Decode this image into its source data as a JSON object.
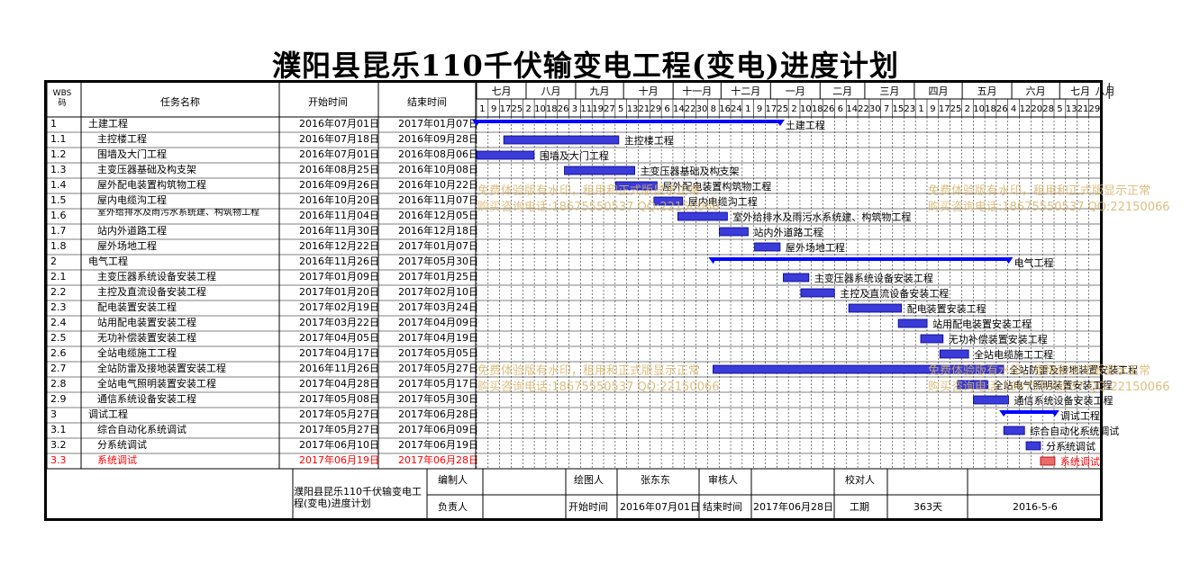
{
  "title": "濮阳县昆乐110千伏输变电工程(变电)进度计划",
  "columns": {
    "wbs": "WBS码",
    "name": "任务名称",
    "start": "开始时间",
    "end": "结束时间"
  },
  "months": [
    "七月",
    "八月",
    "九月",
    "十月",
    "十一月",
    "十二月",
    "一月",
    "二月",
    "三月",
    "四月",
    "五月",
    "六月",
    "七月",
    "八月"
  ],
  "days": [
    "1",
    "9",
    "17",
    "25",
    "2",
    "10",
    "18",
    "26",
    "3",
    "11",
    "19",
    "27",
    "5",
    "13",
    "21",
    "29",
    "6",
    "14",
    "22",
    "30",
    "8",
    "16",
    "24",
    "1",
    "9",
    "17",
    "25",
    "2",
    "10",
    "18",
    "26",
    "6",
    "14",
    "22",
    "30",
    "7",
    "15",
    "23",
    "1",
    "9",
    "17",
    "25",
    "2",
    "10",
    "18",
    "26",
    "4",
    "12",
    "20",
    "28",
    "5",
    "13",
    "21",
    "29"
  ],
  "tasks": [
    {
      "wbs": "1",
      "name": "土建工程",
      "start": "2016年07月01日",
      "end": "2017年01月07日",
      "level": 0,
      "type": "summary",
      "s": 0,
      "e": 190
    },
    {
      "wbs": "1.1",
      "name": "主控楼工程",
      "start": "2016年07月18日",
      "end": "2016年09月28日",
      "level": 1,
      "type": "task",
      "s": 17,
      "e": 89
    },
    {
      "wbs": "1.2",
      "name": "围墙及大门工程",
      "start": "2016年07月01日",
      "end": "2016年08月06日",
      "level": 1,
      "type": "task",
      "s": 0,
      "e": 36
    },
    {
      "wbs": "1.3",
      "name": "主变压器基础及构支架",
      "start": "2016年08月25日",
      "end": "2016年10月08日",
      "level": 1,
      "type": "task",
      "s": 55,
      "e": 99
    },
    {
      "wbs": "1.4",
      "name": "屋外配电装置构筑物工程",
      "start": "2016年09月26日",
      "end": "2016年10月22日",
      "level": 1,
      "type": "task",
      "s": 87,
      "e": 113
    },
    {
      "wbs": "1.5",
      "name": "屋内电缆沟工程",
      "start": "2016年10月20日",
      "end": "2016年11月07日",
      "level": 1,
      "type": "task",
      "s": 111,
      "e": 129
    },
    {
      "wbs": "1.6",
      "name": "室外给排水及雨污水系统建、构筑物工程",
      "start": "2016年11月04日",
      "end": "2016年12月05日",
      "level": 1,
      "type": "task",
      "s": 126,
      "e": 157
    },
    {
      "wbs": "1.7",
      "name": "站内外道路工程",
      "start": "2016年11月30日",
      "end": "2016年12月18日",
      "level": 1,
      "type": "task",
      "s": 152,
      "e": 170
    },
    {
      "wbs": "1.8",
      "name": "屋外场地工程",
      "start": "2016年12月22日",
      "end": "2017年01月07日",
      "level": 1,
      "type": "task",
      "s": 174,
      "e": 190
    },
    {
      "wbs": "2",
      "name": "电气工程",
      "start": "2016年11月26日",
      "end": "2017年05月30日",
      "level": 0,
      "type": "summary",
      "s": 148,
      "e": 333
    },
    {
      "wbs": "2.1",
      "name": "主变压器系统设备安装工程",
      "start": "2017年01月09日",
      "end": "2017年01月25日",
      "level": 1,
      "type": "task",
      "s": 192,
      "e": 208
    },
    {
      "wbs": "2.2",
      "name": "主控及直流设备安装工程",
      "start": "2017年01月20日",
      "end": "2017年02月10日",
      "level": 1,
      "type": "task",
      "s": 203,
      "e": 224
    },
    {
      "wbs": "2.3",
      "name": "配电装置安装工程",
      "start": "2017年02月19日",
      "end": "2017年03月24日",
      "level": 1,
      "type": "task",
      "s": 233,
      "e": 266
    },
    {
      "wbs": "2.4",
      "name": "站用配电装置安装工程",
      "start": "2017年03月22日",
      "end": "2017年04月09日",
      "level": 1,
      "type": "task",
      "s": 264,
      "e": 282
    },
    {
      "wbs": "2.5",
      "name": "无功补偿装置安装工程",
      "start": "2017年04月05日",
      "end": "2017年04月19日",
      "level": 1,
      "type": "task",
      "s": 278,
      "e": 292
    },
    {
      "wbs": "2.6",
      "name": "全站电缆施工工程",
      "start": "2017年04月17日",
      "end": "2017年05月05日",
      "level": 1,
      "type": "task",
      "s": 290,
      "e": 308
    },
    {
      "wbs": "2.7",
      "name": "全站防雷及接地装置安装工程",
      "start": "2016年11月26日",
      "end": "2017年05月27日",
      "level": 1,
      "type": "task",
      "s": 148,
      "e": 330
    },
    {
      "wbs": "2.8",
      "name": "全站电气照明装置安装工程",
      "start": "2017年04月28日",
      "end": "2017年05月17日",
      "level": 1,
      "type": "task",
      "s": 301,
      "e": 320
    },
    {
      "wbs": "2.9",
      "name": "通信系统设备安装工程",
      "start": "2017年05月08日",
      "end": "2017年05月30日",
      "level": 1,
      "type": "task",
      "s": 311,
      "e": 333
    },
    {
      "wbs": "3",
      "name": "调试工程",
      "start": "2017年05月27日",
      "end": "2017年06月28日",
      "level": 0,
      "type": "summary",
      "s": 330,
      "e": 362
    },
    {
      "wbs": "3.1",
      "name": "综合自动化系统调试",
      "start": "2017年05月27日",
      "end": "2017年06月09日",
      "level": 1,
      "type": "task",
      "s": 330,
      "e": 343
    },
    {
      "wbs": "3.2",
      "name": "分系统调试",
      "start": "2017年06月10日",
      "end": "2017年06月19日",
      "level": 1,
      "type": "task",
      "s": 344,
      "e": 353
    },
    {
      "wbs": "3.3",
      "name": "系统调试",
      "start": "2017年06月19日",
      "end": "2017年06月28日",
      "level": 1,
      "type": "critical",
      "s": 353,
      "e": 362
    }
  ],
  "footer": {
    "project": "濮阳县昆乐110千伏输变电工程(变电)进度计划",
    "compiler_label": "编制人",
    "drawer_label": "绘图人",
    "drawer": "张东东",
    "reviewer_label": "审核人",
    "checker_label": "校对人",
    "owner_label": "负责人",
    "start_label": "开始时间",
    "start": "2016年07月01日",
    "end_label": "结束时间",
    "end": "2017年06月28日",
    "duration_label": "工期",
    "duration": "363天",
    "date": "2016-5-6"
  },
  "watermark": {
    "line1": "免费体验版有水印，租用和正式版显示正常",
    "line2": "购买咨询电话:18675550537 QQ:22150066"
  },
  "colors": {
    "bar": "#3b3bd9",
    "bar_border": "#00008b",
    "summary": "#0000ff",
    "critical": "#ef6a6a",
    "critical_text": "#ff0000"
  }
}
